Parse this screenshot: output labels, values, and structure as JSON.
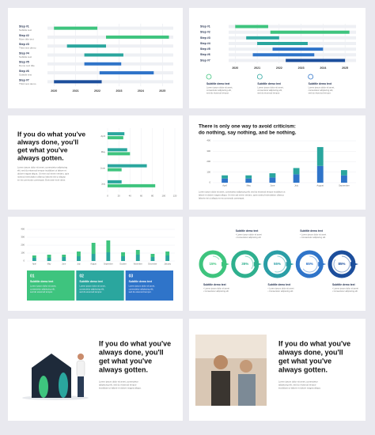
{
  "slides": [
    {
      "type": "gantt",
      "xlim": [
        2019.7,
        2025.5
      ],
      "xticks": [
        2020,
        2021,
        2022,
        2023,
        2024,
        2025
      ],
      "steps": [
        {
          "label": "Step #1",
          "sub": "Subtitle text",
          "start": 2020,
          "end": 2022,
          "color": "#3ec47e"
        },
        {
          "label": "Step #2",
          "sub": "More title text",
          "start": 2022.4,
          "end": 2025.3,
          "color": "#3ec47e"
        },
        {
          "label": "Step #3",
          "sub": "Third text demo",
          "start": 2020.6,
          "end": 2022.4,
          "color": "#2aa69e"
        },
        {
          "label": "Step #4",
          "sub": "Subtitle text",
          "start": 2021.4,
          "end": 2023.2,
          "color": "#2aa69e"
        },
        {
          "label": "Step #5",
          "sub": "Demo text title",
          "start": 2021.4,
          "end": 2023.1,
          "color": "#2f74c9"
        },
        {
          "label": "Step #6",
          "sub": "Subtitle text",
          "start": 2022.1,
          "end": 2024.6,
          "color": "#2f74c9"
        },
        {
          "label": "Step #7",
          "sub": "Third text demo",
          "start": 2020,
          "end": 2022.2,
          "color": "#1c4e9c"
        }
      ]
    },
    {
      "type": "gantt",
      "xlim": [
        2019.7,
        2025.5
      ],
      "xticks": [
        2020,
        2021,
        2022,
        2023,
        2024,
        2025
      ],
      "steps": [
        {
          "label": "Step #1",
          "start": 2020,
          "end": 2021.5,
          "color": "#3ec47e"
        },
        {
          "label": "Step #2",
          "start": 2021.6,
          "end": 2025.2,
          "color": "#3ec47e"
        },
        {
          "label": "Step #3",
          "start": 2020.5,
          "end": 2022,
          "color": "#2aa69e"
        },
        {
          "label": "Step #4",
          "start": 2021,
          "end": 2023.3,
          "color": "#2aa69e"
        },
        {
          "label": "Step #5",
          "start": 2021.7,
          "end": 2024,
          "color": "#2f74c9"
        },
        {
          "label": "Step #6",
          "start": 2020.8,
          "end": 2023.6,
          "color": "#2f74c9"
        },
        {
          "label": "Step #7",
          "start": 2022.3,
          "end": 2025,
          "color": "#1c4e9c"
        }
      ],
      "features": [
        {
          "title": "Subtitle demo text",
          "lines": [
            "Lorem ipsum dolor sit amet,",
            "consectetur adipiscing elit,",
            "sed do eiusmod tempor."
          ]
        },
        {
          "title": "Subtitle demo text",
          "lines": [
            "Lorem ipsum dolor sit amet,",
            "consectetur adipiscing elit,",
            "sed do eiusmod tempor."
          ]
        },
        {
          "title": "Subtitle demo text",
          "lines": [
            "Lorem ipsum dolor sit amet,",
            "consectetur adipiscing elit,",
            "sed do eiusmod tempor."
          ]
        }
      ]
    },
    {
      "type": "hbar",
      "title": [
        "If you do what you've",
        "always done, you'll",
        "get what you've",
        "always gotten."
      ],
      "text": [
        "Lorem ipsum dolor sit amet, consectetur adipiscing",
        "elit, sed do eiusmod tempor incididunt ut labore et",
        "dolore magna aliqua. Ut enim ad minim veniam, quis",
        "nostrud exercitation ullamco laboris nisi ut aliquip",
        "ex ea commodo consequat. Duis aute irure dolor."
      ],
      "categories": [
        "April",
        "May",
        "June",
        "July"
      ],
      "xlim": [
        0,
        120
      ],
      "xticks": [
        0,
        20,
        40,
        60,
        80,
        100,
        120
      ],
      "series": [
        {
          "color": "#2aa69e",
          "values": [
            30,
            35,
            70,
            25
          ]
        },
        {
          "color": "#3ec47e",
          "values": [
            28,
            40,
            25,
            85
          ]
        }
      ]
    },
    {
      "type": "stacked",
      "title": [
        "There is only one way to avoid criticism:",
        "do nothing, say nothing, and be nothing."
      ],
      "text": [
        "Lorem ipsum dolor sit amet, consectetur adipiscing elit, sed do eiusmod tempor incididunt ut",
        "labore et dolore magna aliqua. Ut enim ad minim veniam, quis nostrud exercitation ullamco",
        "laboris nisi ut aliquip ex ea commodo consequat."
      ],
      "categories": [
        "April",
        "May",
        "June",
        "July",
        "August",
        "September"
      ],
      "ylim": [
        0,
        400
      ],
      "yticks": [
        0,
        100,
        200,
        300,
        400
      ],
      "series": [
        {
          "color": "#2f74c9",
          "values": [
            40,
            40,
            50,
            80,
            160,
            70
          ]
        },
        {
          "color": "#2aa69e",
          "values": [
            30,
            30,
            40,
            60,
            180,
            50
          ]
        }
      ]
    },
    {
      "type": "colboxes",
      "categories": [
        "April",
        "May",
        "June",
        "July",
        "August",
        "September",
        "October",
        "November",
        "December",
        "January"
      ],
      "ylim": [
        0,
        400
      ],
      "yticks": [
        0,
        100,
        200,
        300,
        400
      ],
      "series": [
        {
          "color": "#2aa69e",
          "values": [
            40,
            40,
            50,
            60,
            90,
            110,
            60,
            80,
            50,
            70
          ]
        },
        {
          "color": "#3ec47e",
          "values": [
            30,
            40,
            30,
            60,
            140,
            150,
            50,
            60,
            40,
            50
          ]
        }
      ],
      "boxes": [
        {
          "number": "01",
          "title": "Subtitle demo text",
          "lines": [
            "Lorem ipsum dolor sit amet,",
            "consectetur adipiscing elit,",
            "sed do eiusmod tempor."
          ],
          "color": "#3ec47e"
        },
        {
          "number": "02",
          "title": "Subtitle demo text",
          "lines": [
            "Lorem ipsum dolor sit amet,",
            "consectetur adipiscing elit,",
            "sed do eiusmod tempor."
          ],
          "color": "#2aa69e"
        },
        {
          "number": "03",
          "title": "Subtitle demo text",
          "lines": [
            "Lorem ipsum dolor sit amet,",
            "consectetur adipiscing elit,",
            "sed do eiusmod tempor."
          ],
          "color": "#2f74c9"
        }
      ]
    },
    {
      "type": "process",
      "values": [
        15,
        35,
        55,
        65,
        85
      ],
      "value_labels": [
        "15%",
        "35%",
        "55%",
        "65%",
        "85%"
      ],
      "colors": [
        "#3ec47e",
        "#2fb08e",
        "#2a9ea6",
        "#2f74c9",
        "#1c4e9c"
      ],
      "notes": [
        {
          "title": "Subtitle demo text",
          "bullets": [
            "• Lorem ipsum dolor sit amet",
            "• Consectetur adipiscing elit"
          ]
        },
        {
          "title": "Subtitle demo text",
          "bullets": [
            "• Lorem ipsum dolor sit amet",
            "• Consectetur adipiscing elit"
          ]
        },
        {
          "title": "Subtitle demo text",
          "bullets": [
            "• Lorem ipsum dolor sit amet",
            "• Consectetur adipiscing elit"
          ]
        },
        {
          "title": "Subtitle demo text",
          "bullets": [
            "• Lorem ipsum dolor sit amet",
            "• Consectetur adipiscing elit"
          ]
        },
        {
          "title": "Subtitle demo text",
          "bullets": [
            "• Lorem ipsum dolor sit amet",
            "• Consectetur adipiscing elit"
          ]
        }
      ]
    },
    {
      "type": "quote-illustration",
      "title": [
        "If you do what you've",
        "always done, you'll",
        "get what you've",
        "always gotten."
      ],
      "text": [
        "Lorem ipsum dolor sit amet, consectetur",
        "adipiscing elit, sed do eiusmod tempor",
        "incididunt ut labore et dolore magna aliqua."
      ]
    },
    {
      "type": "quote-photo",
      "title": [
        "If you do what you've",
        "always done, you'll",
        "get what you've",
        "always gotten."
      ],
      "text": [
        "Lorem ipsum dolor sit amet, consectetur",
        "adipiscing elit, sed do eiusmod tempor",
        "incididunt ut labore et dolore magna aliqua."
      ]
    }
  ]
}
